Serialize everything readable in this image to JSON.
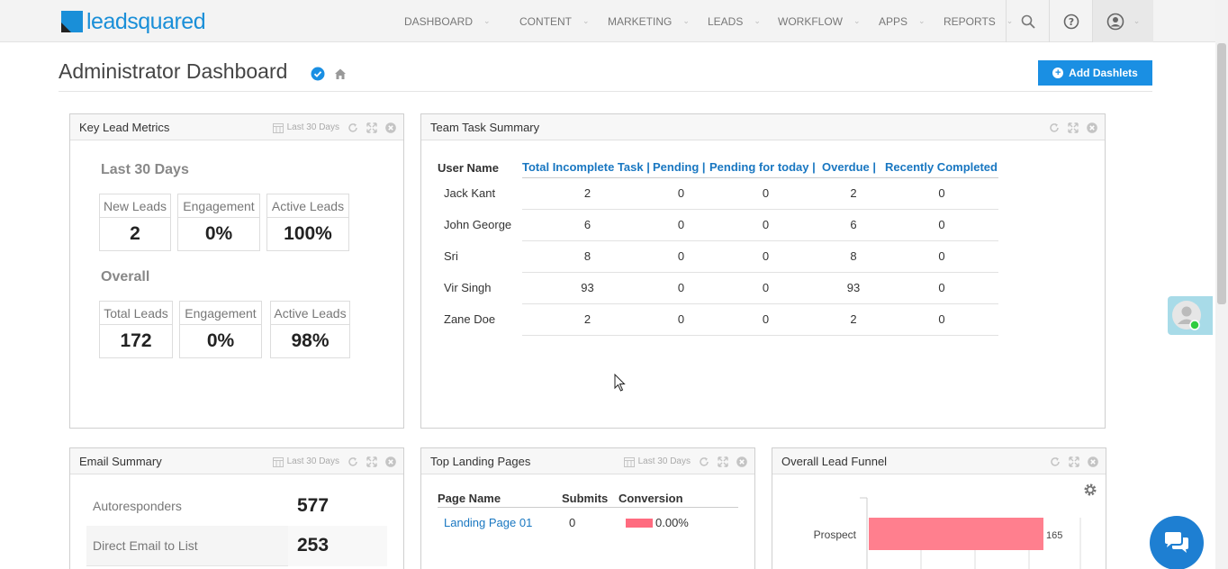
{
  "logo": {
    "text": "leadsquared"
  },
  "nav": {
    "items": [
      "DASHBOARD",
      "CONTENT",
      "MARKETING",
      "LEADS",
      "WORKFLOW",
      "APPS",
      "REPORTS"
    ],
    "icons": [
      "search-icon",
      "help-icon",
      "user-icon"
    ]
  },
  "header": {
    "title": "Administrator Dashboard",
    "add_label": "Add Dashlets"
  },
  "key_metrics": {
    "title": "Key Lead Metrics",
    "range": "Last 30 Days",
    "section1": "Last 30 Days",
    "m1": [
      {
        "label": "New Leads",
        "value": "2"
      },
      {
        "label": "Engagement",
        "value": "0%"
      },
      {
        "label": "Active Leads",
        "value": "100%"
      }
    ],
    "section2": "Overall",
    "m2": [
      {
        "label": "Total Leads",
        "value": "172"
      },
      {
        "label": "Engagement",
        "value": "0%"
      },
      {
        "label": "Active Leads",
        "value": "98%"
      }
    ]
  },
  "team_task": {
    "title": "Team Task Summary",
    "columns": [
      "User Name",
      "Total Incomplete Task |",
      "Pending |",
      "Pending for today |",
      "Overdue |",
      "Recently Completed"
    ],
    "rows": [
      [
        "Jack Kant",
        "2",
        "0",
        "0",
        "2",
        "0"
      ],
      [
        "John George",
        "6",
        "0",
        "0",
        "6",
        "0"
      ],
      [
        "Sri",
        "8",
        "0",
        "0",
        "8",
        "0"
      ],
      [
        "Vir Singh",
        "93",
        "0",
        "0",
        "93",
        "0"
      ],
      [
        "Zane Doe",
        "2",
        "0",
        "0",
        "2",
        "0"
      ]
    ]
  },
  "email_summary": {
    "title": "Email Summary",
    "range": "Last 30 Days",
    "rows": [
      {
        "label": "Autoresponders",
        "value": "577"
      },
      {
        "label": "Direct Email to List",
        "value": "253"
      }
    ]
  },
  "landing": {
    "title": "Top Landing Pages",
    "range": "Last 30 Days",
    "columns": [
      "Page Name",
      "Submits",
      "Conversion"
    ],
    "row": {
      "name": "Landing Page 01",
      "submits": "0",
      "conversion": "0.00%",
      "conversion_value": 0.0
    }
  },
  "funnel": {
    "title": "Overall Lead Funnel",
    "bar": {
      "label": "Prospect",
      "value": "165"
    },
    "colors": {
      "bar": "#ff7f8e"
    }
  },
  "colors": {
    "accent": "#1a8fe3",
    "link": "#1977c1"
  }
}
